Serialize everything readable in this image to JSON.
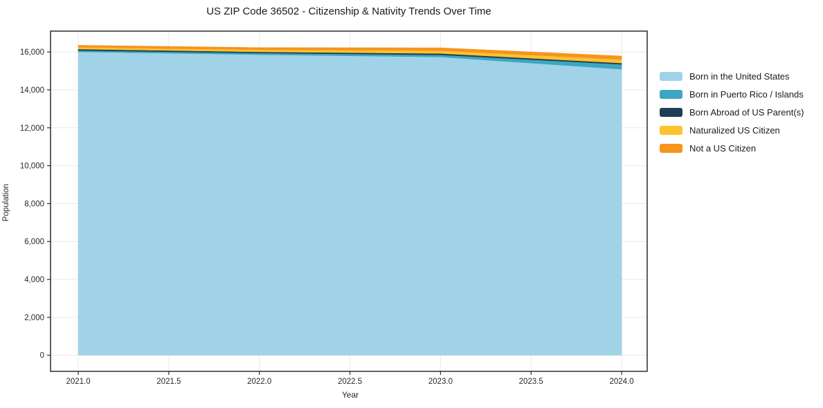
{
  "page": {
    "title": "US ZIP Code 36502 - Citizenship & Nativity Trends Over Time"
  },
  "chart_data": {
    "type": "area",
    "stacked": true,
    "title": "US ZIP Code 36502 - Citizenship & Nativity Trends Over Time",
    "xlabel": "Year",
    "ylabel": "Population",
    "x": [
      2021,
      2022,
      2023,
      2024
    ],
    "series": [
      {
        "name": "Born in the United States",
        "color": "#a0d2e8",
        "values": [
          16005,
          15855,
          15735,
          15090
        ]
      },
      {
        "name": "Born in Puerto Rico / Islands",
        "color": "#3da6c2",
        "values": [
          70,
          90,
          110,
          255
        ]
      },
      {
        "name": "Born Abroad of US Parent(s)",
        "color": "#1f3f54",
        "values": [
          75,
          60,
          75,
          70
        ]
      },
      {
        "name": "Naturalized US Citizen",
        "color": "#fcc32f",
        "values": [
          95,
          110,
          150,
          185
        ]
      },
      {
        "name": "Not a US Citizen",
        "color": "#f6941e",
        "values": [
          110,
          115,
          150,
          185
        ]
      }
    ],
    "xlim": [
      2020.847,
      2024.141
    ],
    "ylim": [
      -850,
      17100
    ],
    "xticks": {
      "values": [
        2021.0,
        2021.5,
        2022.0,
        2022.5,
        2023.0,
        2023.5,
        2024.0
      ],
      "labels": [
        "2021.0",
        "2021.5",
        "2022.0",
        "2022.5",
        "2023.0",
        "2023.5",
        "2024.0"
      ]
    },
    "yticks": {
      "values": [
        0,
        2000,
        4000,
        6000,
        8000,
        10000,
        12000,
        14000,
        16000
      ],
      "labels": [
        "0",
        "2,000",
        "4,000",
        "6,000",
        "8,000",
        "10,000",
        "12,000",
        "14,000",
        "16,000"
      ]
    },
    "grid": true,
    "legend_position": "right-outside-top",
    "colors": {
      "grid": "#e8e8e8",
      "spine": "#2b2b2b",
      "tick_label": "#262626",
      "background": "#ffffff"
    }
  }
}
